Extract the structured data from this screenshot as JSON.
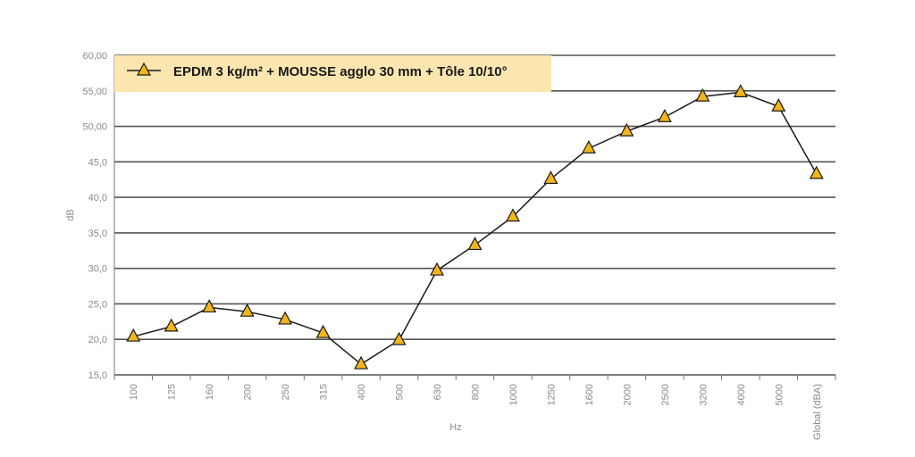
{
  "chart_data": {
    "type": "line",
    "categories": [
      "100",
      "125",
      "160",
      "200",
      "250",
      "315",
      "400",
      "500",
      "630",
      "800",
      "1000",
      "1250",
      "1600",
      "2000",
      "2500",
      "3200",
      "4000",
      "5000",
      "Global (dBA)"
    ],
    "series": [
      {
        "name": "EPDM 3 kg/m² + MOUSSE agglo 30 mm + Tôle 10/10°",
        "values": [
          20.4,
          21.8,
          24.5,
          23.9,
          22.8,
          20.9,
          16.5,
          19.9,
          29.7,
          33.3,
          37.3,
          42.6,
          46.9,
          49.3,
          51.3,
          54.2,
          54.8,
          52.8,
          43.3
        ],
        "marker": "triangle",
        "marker_color": "#f2b51a",
        "line_color": "#1a1a1a"
      }
    ],
    "xlabel": "Hz",
    "ylabel": "dB",
    "ylim": [
      15,
      60
    ],
    "yticks": [
      15,
      20,
      25,
      30,
      35,
      40,
      45,
      50,
      55,
      60
    ],
    "ytick_labels": [
      "15,0",
      "20,0",
      "25,0",
      "30,0",
      "35,0",
      "40,0",
      "45,0",
      "50,00",
      "55,00",
      "60,00"
    ],
    "grid": true,
    "legend_position": "top-left",
    "legend_background": "#fbe6b0"
  }
}
